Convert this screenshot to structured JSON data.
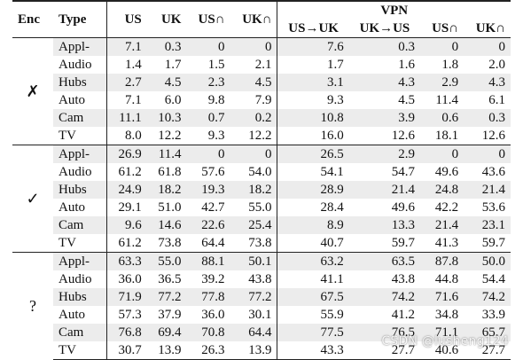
{
  "headers": {
    "enc": "Enc",
    "type": "Type",
    "us": "US",
    "uk": "UK",
    "us_cap": "US∩",
    "uk_cap": "UK∩",
    "vpn": "VPN",
    "us_to_uk": "US→UK",
    "uk_to_us": "UK→US",
    "vpn_us_cap": "US∩",
    "vpn_uk_cap": "UK∩"
  },
  "groups": [
    {
      "enc": "✗",
      "rows": [
        {
          "type": "Appl-",
          "v": [
            "7.1",
            "0.3",
            "0",
            "0",
            "7.6",
            "0.3",
            "0",
            "0"
          ]
        },
        {
          "type": "Audio",
          "v": [
            "1.4",
            "1.7",
            "1.5",
            "2.1",
            "1.7",
            "1.6",
            "1.8",
            "2.0"
          ]
        },
        {
          "type": "Hubs",
          "v": [
            "2.7",
            "4.5",
            "2.3",
            "4.5",
            "3.1",
            "4.3",
            "2.9",
            "4.3"
          ]
        },
        {
          "type": "Auto",
          "v": [
            "7.1",
            "6.0",
            "9.8",
            "7.9",
            "9.3",
            "4.5",
            "11.4",
            "6.1"
          ]
        },
        {
          "type": "Cam",
          "v": [
            "11.1",
            "10.3",
            "0.7",
            "0.2",
            "10.8",
            "3.9",
            "0.6",
            "0.3"
          ]
        },
        {
          "type": "TV",
          "v": [
            "8.0",
            "12.2",
            "9.3",
            "12.2",
            "16.0",
            "12.6",
            "18.1",
            "12.6"
          ]
        }
      ]
    },
    {
      "enc": "✓",
      "rows": [
        {
          "type": "Appl-",
          "v": [
            "26.9",
            "11.4",
            "0",
            "0",
            "26.5",
            "2.9",
            "0",
            "0"
          ]
        },
        {
          "type": "Audio",
          "v": [
            "61.2",
            "61.8",
            "57.6",
            "54.0",
            "54.1",
            "54.7",
            "49.6",
            "43.6"
          ]
        },
        {
          "type": "Hubs",
          "v": [
            "24.9",
            "18.2",
            "19.3",
            "18.2",
            "28.9",
            "21.4",
            "24.8",
            "21.4"
          ]
        },
        {
          "type": "Auto",
          "v": [
            "29.1",
            "51.0",
            "42.7",
            "55.0",
            "28.4",
            "49.6",
            "42.2",
            "53.6"
          ]
        },
        {
          "type": "Cam",
          "v": [
            "9.6",
            "14.6",
            "22.6",
            "25.4",
            "8.9",
            "13.3",
            "21.4",
            "23.1"
          ]
        },
        {
          "type": "TV",
          "v": [
            "61.2",
            "73.8",
            "64.4",
            "73.8",
            "40.7",
            "59.7",
            "41.3",
            "59.7"
          ]
        }
      ]
    },
    {
      "enc": "?",
      "rows": [
        {
          "type": "Appl-",
          "v": [
            "63.3",
            "55.0",
            "88.1",
            "50.1",
            "63.2",
            "63.5",
            "87.8",
            "50.0"
          ]
        },
        {
          "type": "Audio",
          "v": [
            "36.0",
            "36.5",
            "39.2",
            "43.8",
            "41.1",
            "43.8",
            "44.8",
            "54.4"
          ]
        },
        {
          "type": "Hubs",
          "v": [
            "71.9",
            "77.2",
            "77.8",
            "77.2",
            "67.5",
            "74.2",
            "71.6",
            "74.2"
          ]
        },
        {
          "type": "Auto",
          "v": [
            "57.3",
            "37.9",
            "36.0",
            "30.1",
            "55.9",
            "41.2",
            "34.8",
            "33.9"
          ]
        },
        {
          "type": "Cam",
          "v": [
            "76.8",
            "69.4",
            "70.8",
            "64.4",
            "77.5",
            "76.5",
            "71.1",
            "65.7"
          ]
        },
        {
          "type": "TV",
          "v": [
            "30.7",
            "13.9",
            "26.3",
            "13.9",
            "43.3",
            "27.7",
            "40.6",
            "27.7"
          ]
        }
      ]
    }
  ],
  "watermark": "CSDN @lusheng124"
}
